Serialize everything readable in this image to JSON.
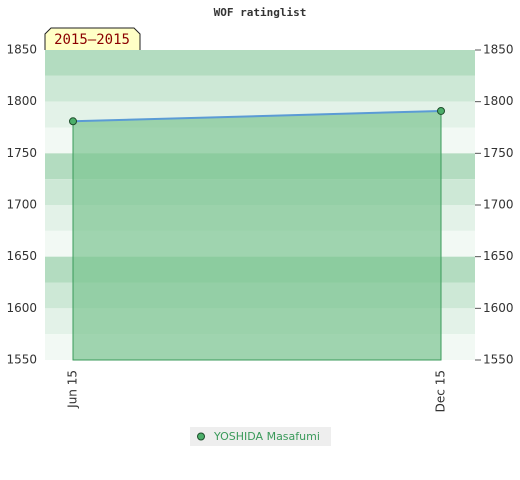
{
  "chart_data": {
    "type": "area-line",
    "title": "WOF ratinglist",
    "annotation": "2015–2015",
    "categories": [
      "Jun 15",
      "Dec 15"
    ],
    "series": [
      {
        "name": "YOSHIDA Masafumi",
        "color": "#5b9bd5",
        "marker_color": "#4caf6a",
        "fill_color": "#7cc492",
        "values": [
          1781,
          1791
        ]
      }
    ],
    "ylim": [
      1550,
      1850
    ],
    "yticks": [
      1550,
      1600,
      1650,
      1700,
      1750,
      1800,
      1850
    ],
    "y2lim": [
      1550,
      1850
    ],
    "y2ticks": [
      1550,
      1600,
      1650,
      1700,
      1750,
      1800,
      1850
    ],
    "legend": "bottom"
  }
}
